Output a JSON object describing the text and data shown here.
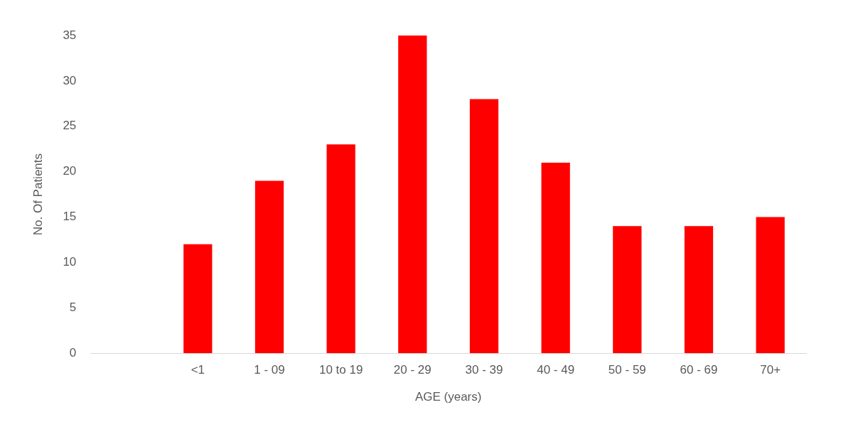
{
  "chart_data": {
    "type": "bar",
    "xlabel": "AGE (years)",
    "ylabel": "No. Of Patients",
    "categories": [
      null,
      "<1",
      "1 - 09",
      "10 to 19",
      "20 - 29",
      "30 - 39",
      "40 - 49",
      "50 - 59",
      "60 - 69",
      "70+"
    ],
    "values": [
      null,
      12,
      19,
      23,
      35,
      28,
      21,
      14,
      14,
      15
    ],
    "color": "#ff0000",
    "ylim": [
      0,
      35
    ],
    "yticks": [
      0,
      5,
      10,
      15,
      20,
      25,
      30,
      35
    ],
    "grid": false,
    "legend": false
  }
}
